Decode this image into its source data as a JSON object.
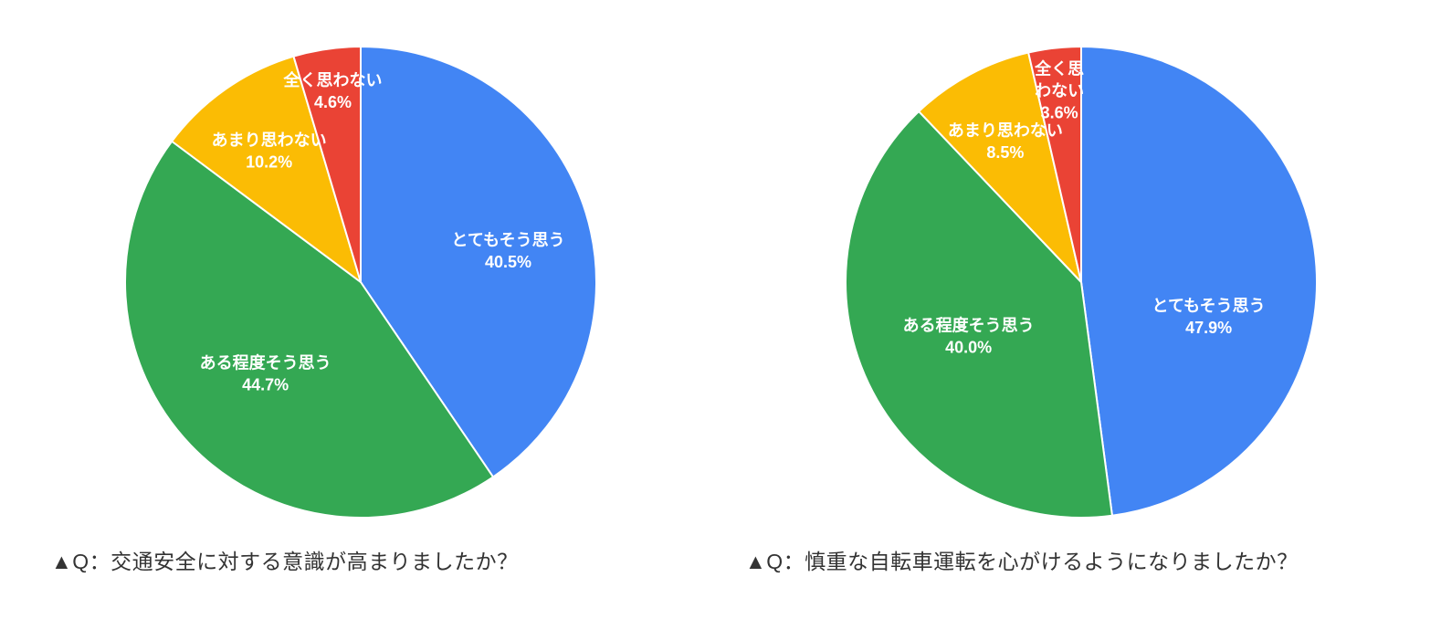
{
  "page": {
    "background_color": "#ffffff"
  },
  "chart_data": [
    {
      "type": "pie",
      "caption": "▲Q：交通安全に対する意識が高まりましたか？",
      "start_angle_deg": 0,
      "direction": "clockwise",
      "legend_position": "none",
      "label_color": "#ffffff",
      "slices": [
        {
          "label": "とてもそう思う",
          "value": 40.5,
          "percent_label": "40.5%",
          "color": "#4285F4",
          "label_lines": [
            "とてもそう思う",
            "40.5%"
          ],
          "label_radius": 0.64,
          "label_angle_deg": 78
        },
        {
          "label": "ある程度そう思う",
          "value": 44.7,
          "percent_label": "44.7%",
          "color": "#34A853",
          "label_lines": [
            "ある程度そう思う",
            "44.7%"
          ],
          "label_radius": 0.56
        },
        {
          "label": "あまり思わない",
          "value": 10.2,
          "percent_label": "10.2%",
          "color": "#FBBC04",
          "label_lines": [
            "あまり思わない",
            "10.2%"
          ],
          "label_radius": 0.68
        },
        {
          "label": "全く思わない",
          "value": 4.6,
          "percent_label": "4.6%",
          "color": "#EA4335",
          "label_lines": [
            "全く思わない",
            "4.6%"
          ],
          "label_radius": 0.82
        }
      ]
    },
    {
      "type": "pie",
      "caption": "▲Q：慎重な自転車運転を心がけるようになりましたか？",
      "start_angle_deg": 0,
      "direction": "clockwise",
      "legend_position": "none",
      "label_color": "#ffffff",
      "slices": [
        {
          "label": "とてもそう思う",
          "value": 47.9,
          "percent_label": "47.9%",
          "color": "#4285F4",
          "label_lines": [
            "とてもそう思う",
            "47.9%"
          ],
          "label_radius": 0.56,
          "label_angle_deg": 105
        },
        {
          "label": "ある程度そう思う",
          "value": 40.0,
          "percent_label": "40.0%",
          "color": "#34A853",
          "label_lines": [
            "ある程度そう思う",
            "40.0%"
          ],
          "label_radius": 0.53
        },
        {
          "label": "あまり思わない",
          "value": 8.5,
          "percent_label": "8.5%",
          "color": "#FBBC04",
          "label_lines": [
            "あまり思わない",
            "8.5%"
          ],
          "label_radius": 0.68
        },
        {
          "label": "全く思わない",
          "value": 3.6,
          "percent_label": "3.6%",
          "color": "#EA4335",
          "label_lines": [
            "全く思",
            "わない",
            "3.6%"
          ],
          "label_radius": 0.82
        }
      ]
    }
  ]
}
